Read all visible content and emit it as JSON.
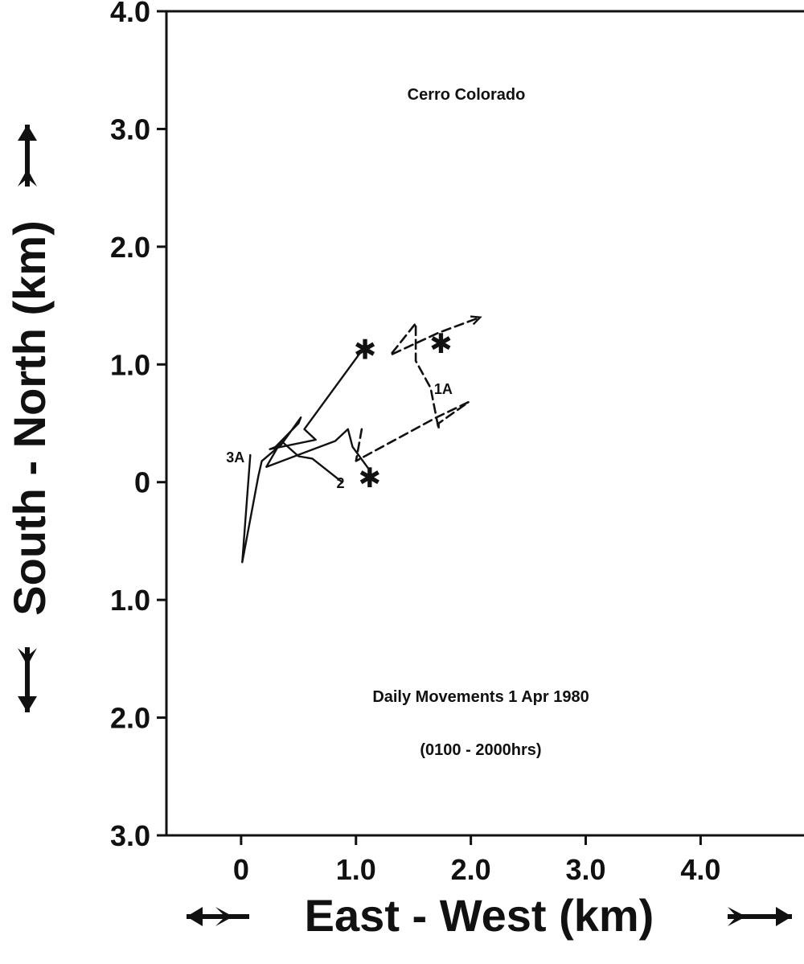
{
  "chart_data": {
    "type": "line",
    "title": "Cerro Colorado",
    "annotations": [
      "Daily Movements 1 Apr 1980",
      "(0100 - 2000hrs)"
    ],
    "xlabel": "East - West (km)",
    "ylabel": "South - North (km)",
    "xlim": [
      -0.65,
      4.9
    ],
    "ylim": [
      -3.0,
      4.0
    ],
    "x_ticks": [
      0,
      1,
      2,
      3,
      4
    ],
    "x_tick_labels": [
      "0",
      "1.0",
      "2.0",
      "3.0",
      "4.0"
    ],
    "y_ticks": [
      -3,
      -2,
      -1,
      0,
      1,
      2,
      3,
      4
    ],
    "y_tick_labels": [
      "3.0",
      "2.0",
      "1.0",
      "0",
      "1.0",
      "2.0",
      "3.0",
      "4.0"
    ],
    "grid": false,
    "legend": "none",
    "series": [
      {
        "name": "1A",
        "style": "dashed",
        "x": [
          1.05,
          1.0,
          1.7,
          1.98,
          1.72,
          1.72,
          1.65,
          1.65,
          1.52,
          1.52,
          1.3,
          1.72,
          2.08
        ],
        "y": [
          0.45,
          0.18,
          0.55,
          0.68,
          0.5,
          0.45,
          0.8,
          0.8,
          1.03,
          1.35,
          1.08,
          1.27,
          1.4
        ],
        "end_label": "1A",
        "end_label_x": 1.68,
        "end_label_y": 0.75,
        "marker_x": 1.74,
        "marker_y": 1.18,
        "arrow": "end"
      },
      {
        "name": "2",
        "style": "solid",
        "x": [
          0.88,
          0.62,
          0.5,
          0.35,
          0.22,
          0.82,
          0.93,
          0.97,
          1.12
        ],
        "y": [
          0.0,
          0.2,
          0.22,
          0.35,
          0.13,
          0.35,
          0.45,
          0.3,
          0.1
        ],
        "end_label": "2",
        "end_label_x": 0.83,
        "end_label_y": -0.05,
        "marker_x": 1.12,
        "marker_y": 0.04,
        "arrow": "none"
      },
      {
        "name": "3A",
        "style": "solid",
        "x": [
          0.08,
          0.08,
          0.01,
          0.15,
          0.18,
          0.35,
          0.52,
          0.5,
          0.3,
          0.25,
          0.65,
          0.55,
          1.06
        ],
        "y": [
          0.23,
          0.23,
          -0.68,
          0.05,
          0.18,
          0.32,
          0.55,
          0.5,
          0.3,
          0.28,
          0.36,
          0.45,
          1.13
        ],
        "end_label": "3A",
        "end_label_x": -0.13,
        "end_label_y": 0.17,
        "marker_x": 1.08,
        "marker_y": 1.13,
        "arrow": "none"
      }
    ]
  }
}
